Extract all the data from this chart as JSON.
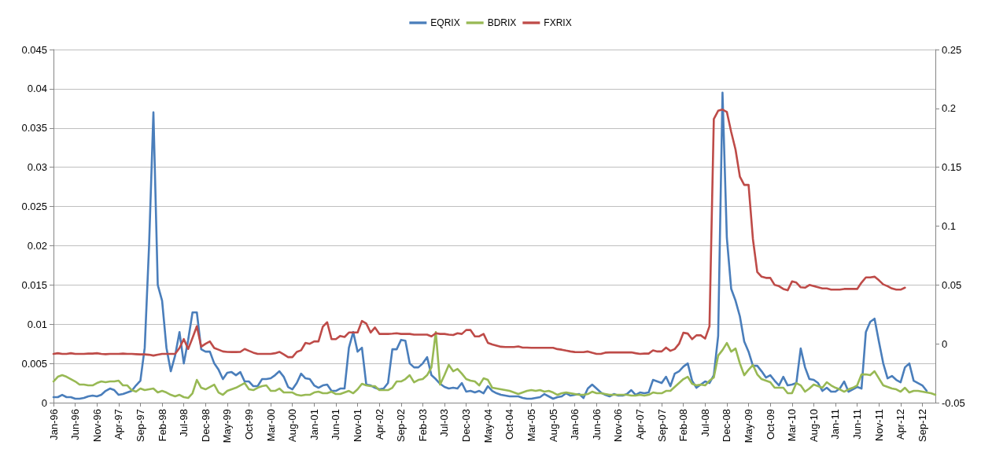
{
  "chart_data": {
    "type": "line",
    "legend": "top",
    "grid": "y",
    "marker": "none",
    "line_style": "solid",
    "categories": [
      "Jan-96",
      null,
      null,
      null,
      null,
      "Jun-96",
      null,
      null,
      null,
      null,
      "Nov-96",
      null,
      null,
      null,
      null,
      "Apr-97",
      null,
      null,
      null,
      null,
      "Sep-97",
      null,
      null,
      null,
      null,
      "Feb-98",
      null,
      null,
      null,
      null,
      "Jul-98",
      null,
      null,
      null,
      null,
      "Dec-98",
      null,
      null,
      null,
      null,
      "May-99",
      null,
      null,
      null,
      null,
      "Oct-99",
      null,
      null,
      null,
      null,
      "Mar-00",
      null,
      null,
      null,
      null,
      "Aug-00",
      null,
      null,
      null,
      null,
      "Jan-01",
      null,
      null,
      null,
      null,
      "Jun-01",
      null,
      null,
      null,
      null,
      "Nov-01",
      null,
      null,
      null,
      null,
      "Apr-02",
      null,
      null,
      null,
      null,
      "Sep-02",
      null,
      null,
      null,
      null,
      "Feb-03",
      null,
      null,
      null,
      null,
      "Jul-03",
      null,
      null,
      null,
      null,
      "Dec-03",
      null,
      null,
      null,
      null,
      "May-04",
      null,
      null,
      null,
      null,
      "Oct-04",
      null,
      null,
      null,
      null,
      "Mar-05",
      null,
      null,
      null,
      null,
      "Aug-05",
      null,
      null,
      null,
      null,
      "Jan-06",
      null,
      null,
      null,
      null,
      "Jun-06",
      null,
      null,
      null,
      null,
      "Nov-06",
      null,
      null,
      null,
      null,
      "Apr-07",
      null,
      null,
      null,
      null,
      "Sep-07",
      null,
      null,
      null,
      null,
      "Feb-08",
      null,
      null,
      null,
      null,
      "Jul-08",
      null,
      null,
      null,
      null,
      "Dec-08",
      null,
      null,
      null,
      null,
      "May-09",
      null,
      null,
      null,
      null,
      "Oct-09",
      null,
      null,
      null,
      null,
      "Mar-10",
      null,
      null,
      null,
      null,
      "Aug-10",
      null,
      null,
      null,
      null,
      "Jan-11",
      null,
      null,
      null,
      null,
      "Jun-11",
      null,
      null,
      null,
      null,
      "Nov-11",
      null,
      null,
      null,
      null,
      "Apr-12",
      null,
      null,
      null,
      null,
      "Sep-12",
      null,
      null,
      null
    ],
    "ylim": [
      0,
      0.045
    ],
    "yticks": [
      0,
      0.005,
      0.01,
      0.015,
      0.02,
      0.025,
      0.03,
      0.035,
      0.04,
      0.045
    ],
    "y2lim": [
      -0.05,
      0.25
    ],
    "y2ticks": [
      -0.05,
      0,
      0.05,
      0.1,
      0.15,
      0.2,
      0.25
    ],
    "series": [
      {
        "name": "EQRIX",
        "color": "#4a7ebb",
        "values": [
          0.0007,
          0.0007,
          0.001,
          0.0007,
          0.0007,
          0.0005,
          0.0005,
          0.0006,
          0.0008,
          0.0009,
          0.0008,
          0.001,
          0.0015,
          0.0018,
          0.0016,
          0.001,
          0.0011,
          0.0013,
          0.0015,
          0.0022,
          0.0028,
          0.007,
          0.02,
          0.037,
          0.015,
          0.013,
          0.007,
          0.004,
          0.006,
          0.009,
          0.005,
          0.008,
          0.0115,
          0.0115,
          0.0068,
          0.0065,
          0.0065,
          0.005,
          0.0042,
          0.003,
          0.0038,
          0.0039,
          0.0035,
          0.0039,
          0.0027,
          0.0027,
          0.0021,
          0.0021,
          0.003,
          0.003,
          0.0031,
          0.0035,
          0.004,
          0.0033,
          0.002,
          0.0017,
          0.0025,
          0.0037,
          0.0031,
          0.003,
          0.0022,
          0.0019,
          0.0022,
          0.0023,
          0.0015,
          0.0015,
          0.0018,
          0.0018,
          0.007,
          0.009,
          0.0065,
          0.007,
          0.0023,
          0.0022,
          0.0019,
          0.0017,
          0.0018,
          0.0025,
          0.0068,
          0.0068,
          0.008,
          0.0079,
          0.005,
          0.0045,
          0.0045,
          0.005,
          0.0058,
          0.0035,
          0.003,
          0.0024,
          0.002,
          0.0018,
          0.0019,
          0.0018,
          0.0025,
          0.0014,
          0.0015,
          0.0013,
          0.0015,
          0.0012,
          0.0021,
          0.0015,
          0.0012,
          0.001,
          0.0009,
          0.0008,
          0.0008,
          0.0008,
          0.0006,
          0.0005,
          0.0005,
          0.0006,
          0.0007,
          0.0011,
          0.0008,
          0.0005,
          0.0007,
          0.0008,
          0.0012,
          0.0009,
          0.001,
          0.0011,
          0.0006,
          0.0018,
          0.0023,
          0.0018,
          0.0013,
          0.001,
          0.0008,
          0.0011,
          0.0009,
          0.0009,
          0.0011,
          0.0016,
          0.001,
          0.0013,
          0.0012,
          0.0013,
          0.0029,
          0.0027,
          0.0025,
          0.0033,
          0.0021,
          0.0037,
          0.004,
          0.0046,
          0.005,
          0.0028,
          0.0019,
          0.0023,
          0.0027,
          0.0025,
          0.0035,
          0.0085,
          0.0395,
          0.021,
          0.0145,
          0.013,
          0.011,
          0.0078,
          0.0065,
          0.0047,
          0.0047,
          0.004,
          0.0032,
          0.0035,
          0.0028,
          0.0022,
          0.0033,
          0.0022,
          0.0023,
          0.0025,
          0.0069,
          0.0045,
          0.003,
          0.0029,
          0.0025,
          0.0015,
          0.0019,
          0.0014,
          0.0014,
          0.0018,
          0.0027,
          0.0014,
          0.0017,
          0.002,
          0.0018,
          0.009,
          0.0103,
          0.0107,
          0.0078,
          0.005,
          0.0031,
          0.0034,
          0.0029,
          0.0026,
          0.0045,
          0.005,
          0.0028,
          0.0025,
          0.0022,
          0.0015,
          null,
          null
        ]
      },
      {
        "name": "BDRIX",
        "color": "#98b954",
        "values": [
          0.0027,
          0.0033,
          0.0035,
          0.0033,
          0.003,
          0.0027,
          0.0023,
          0.0023,
          0.0022,
          0.0022,
          0.0025,
          0.0027,
          0.0026,
          0.0027,
          0.0027,
          0.0028,
          0.0022,
          0.0022,
          0.0016,
          0.0014,
          0.0018,
          0.0016,
          0.0017,
          0.0018,
          0.0013,
          0.0015,
          0.0013,
          0.001,
          0.0008,
          0.001,
          0.0007,
          0.0006,
          0.0012,
          0.0029,
          0.0019,
          0.0017,
          0.002,
          0.0023,
          0.0013,
          0.001,
          0.0015,
          0.0017,
          0.0019,
          0.0022,
          0.0025,
          0.0017,
          0.0016,
          0.0019,
          0.0021,
          0.0022,
          0.0015,
          0.0015,
          0.0018,
          0.0013,
          0.0013,
          0.0013,
          0.001,
          0.0009,
          0.001,
          0.001,
          0.0013,
          0.0014,
          0.0012,
          0.0012,
          0.0014,
          0.0011,
          0.0011,
          0.0013,
          0.0015,
          0.0012,
          0.0017,
          0.0024,
          0.0022,
          0.0021,
          0.0021,
          0.0016,
          0.0016,
          0.0016,
          0.0019,
          0.0027,
          0.0027,
          0.003,
          0.0035,
          0.0026,
          0.0029,
          0.003,
          0.0035,
          0.0045,
          0.009,
          0.0023,
          0.0035,
          0.0048,
          0.004,
          0.0043,
          0.0037,
          0.003,
          0.0028,
          0.0027,
          0.0022,
          0.0031,
          0.0029,
          0.0019,
          0.0018,
          0.0017,
          0.0016,
          0.0015,
          0.0013,
          0.0011,
          0.0013,
          0.0015,
          0.0016,
          0.0015,
          0.0016,
          0.0014,
          0.0015,
          0.0013,
          0.001,
          0.0012,
          0.0013,
          0.0012,
          0.0011,
          0.001,
          0.001,
          0.0011,
          0.0014,
          0.0012,
          0.0012,
          0.0011,
          0.001,
          0.001,
          0.001,
          0.001,
          0.001,
          0.0009,
          0.0009,
          0.001,
          0.0009,
          0.001,
          0.0013,
          0.0012,
          0.0012,
          0.0015,
          0.0015,
          0.002,
          0.0025,
          0.003,
          0.0033,
          0.0024,
          0.0022,
          0.0023,
          0.0022,
          0.0028,
          0.0032,
          0.006,
          0.0067,
          0.0076,
          0.0065,
          0.0069,
          0.005,
          0.0035,
          0.0042,
          0.0048,
          0.0036,
          0.003,
          0.0028,
          0.0026,
          0.0019,
          0.0019,
          0.0019,
          0.0012,
          0.0012,
          0.0025,
          0.0022,
          0.0014,
          0.0018,
          0.0023,
          0.0021,
          0.0019,
          0.0026,
          0.0022,
          0.0019,
          0.0017,
          0.0014,
          0.0017,
          0.0019,
          0.0022,
          0.0036,
          0.0036,
          0.0035,
          0.004,
          0.0031,
          0.0022,
          0.002,
          0.0018,
          0.0017,
          0.0014,
          0.0019,
          0.0013,
          0.0015,
          0.0015,
          0.0014,
          0.0013,
          0.0012,
          0.001
        ]
      },
      {
        "name": "FXRIX",
        "color": "#be4b48",
        "axis": "y2",
        "values": [
          -0.0086,
          -0.008,
          -0.0086,
          -0.0086,
          -0.008,
          -0.0086,
          -0.0086,
          -0.0086,
          -0.0083,
          -0.0083,
          -0.008,
          -0.0086,
          -0.0088,
          -0.0086,
          -0.0086,
          -0.0086,
          -0.0083,
          -0.0086,
          -0.0086,
          -0.0088,
          -0.009,
          -0.009,
          -0.0093,
          -0.01,
          -0.0093,
          -0.0086,
          -0.0086,
          -0.0086,
          -0.0086,
          -0.0036,
          0.004,
          -0.0044,
          0.005,
          0.015,
          -0.0025,
          0,
          0.002,
          -0.0036,
          -0.005,
          -0.0065,
          -0.0069,
          -0.007,
          -0.007,
          -0.0069,
          -0.0044,
          -0.006,
          -0.0075,
          -0.0086,
          -0.0086,
          -0.0086,
          -0.0086,
          -0.008,
          -0.0069,
          -0.009,
          -0.0113,
          -0.0113,
          -0.0069,
          -0.0055,
          0.0008,
          0,
          0.002,
          0.002,
          0.0145,
          0.0183,
          0.004,
          0.004,
          0.0067,
          0.0058,
          0.0096,
          0.0096,
          0.0096,
          0.0194,
          0.0172,
          0.0096,
          0.0139,
          0.0084,
          0.0084,
          0.0084,
          0.0086,
          0.009,
          0.0084,
          0.0084,
          0.0084,
          0.0078,
          0.0078,
          0.0078,
          0.0078,
          0.0063,
          0.009,
          0.0084,
          0.0084,
          0.0078,
          0.0075,
          0.009,
          0.0084,
          0.0117,
          0.0117,
          0.0063,
          0.0063,
          0.0084,
          0.0008,
          -0.0005,
          -0.0015,
          -0.0025,
          -0.0027,
          -0.0027,
          -0.0027,
          -0.0022,
          -0.0032,
          -0.0032,
          -0.0034,
          -0.0034,
          -0.0034,
          -0.0034,
          -0.0034,
          -0.0034,
          -0.0045,
          -0.005,
          -0.0058,
          -0.0065,
          -0.007,
          -0.0071,
          -0.0071,
          -0.0065,
          -0.0076,
          -0.0086,
          -0.0086,
          -0.0075,
          -0.0073,
          -0.0073,
          -0.0073,
          -0.0073,
          -0.0073,
          -0.0073,
          -0.008,
          -0.0086,
          -0.0083,
          -0.0083,
          -0.0056,
          -0.0065,
          -0.0065,
          -0.0032,
          -0.006,
          -0.0045,
          0,
          0.0094,
          0.0087,
          0.0039,
          0.0072,
          0.0072,
          0.0044,
          0.0149,
          0.191,
          0.198,
          0.199,
          0.197,
          0.18,
          0.165,
          0.142,
          0.135,
          0.135,
          0.089,
          0.061,
          0.057,
          0.056,
          0.056,
          0.05,
          0.049,
          0.0466,
          0.0455,
          0.053,
          0.052,
          0.048,
          0.0477,
          0.05,
          0.049,
          0.048,
          0.047,
          0.047,
          0.046,
          0.046,
          0.046,
          0.0466,
          0.0466,
          0.0466,
          0.0466,
          0.052,
          0.0564,
          0.0564,
          0.057,
          0.054,
          0.0505,
          0.049,
          0.047,
          0.046,
          0.046,
          0.0477,
          null,
          null,
          null,
          null,
          null,
          null,
          null
        ]
      }
    ]
  }
}
